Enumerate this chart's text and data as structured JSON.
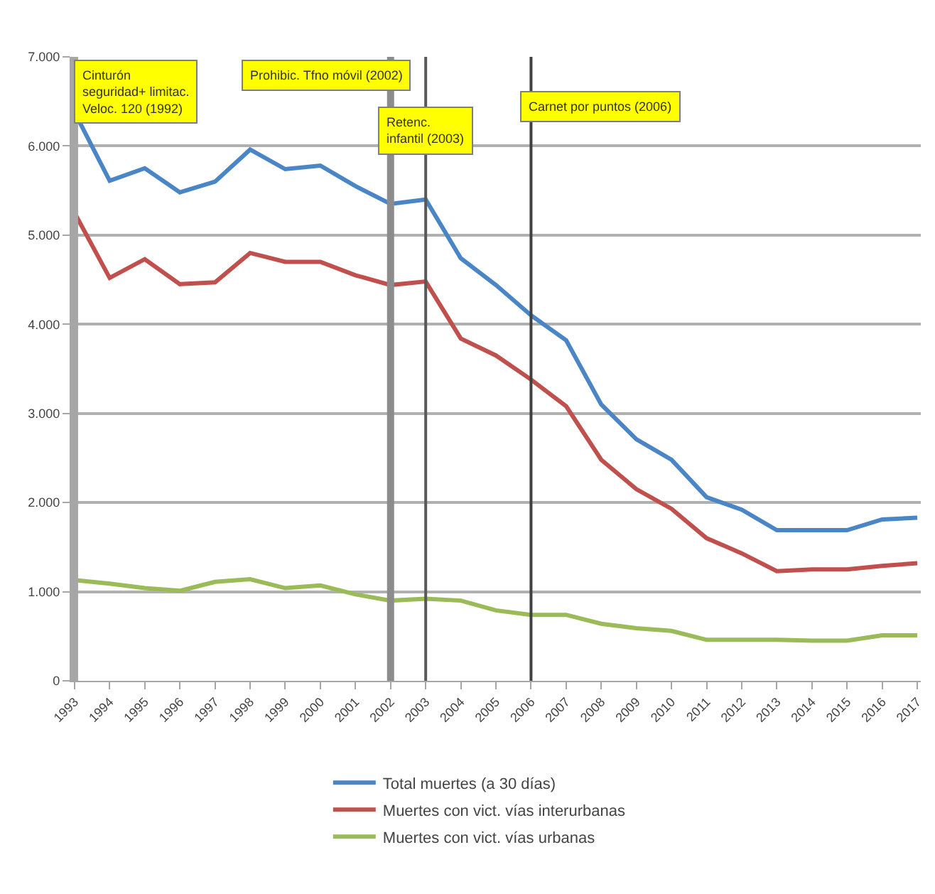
{
  "chart_data": {
    "type": "line",
    "categories": [
      "1993",
      "1994",
      "1995",
      "1996",
      "1997",
      "1998",
      "1999",
      "2000",
      "2001",
      "2002",
      "2003",
      "2004",
      "2005",
      "2006",
      "2007",
      "2008",
      "2009",
      "2010",
      "2011",
      "2012",
      "2013",
      "2014",
      "2015",
      "2016",
      "2017"
    ],
    "series": [
      {
        "name": "Total muertes (a 30 días)",
        "color": "#4a86c6",
        "values": [
          6380,
          5610,
          5750,
          5480,
          5600,
          5960,
          5740,
          5780,
          5550,
          5350,
          5400,
          4740,
          4440,
          4100,
          3820,
          3100,
          2710,
          2480,
          2060,
          1920,
          1690,
          1690,
          1690,
          1810,
          1830
        ]
      },
      {
        "name": "Muertes con vict. vías interurbanas",
        "color": "#c0504d",
        "values": [
          5250,
          4520,
          4730,
          4450,
          4470,
          4800,
          4700,
          4700,
          4550,
          4440,
          4480,
          3840,
          3650,
          3380,
          3080,
          2480,
          2150,
          1930,
          1600,
          1430,
          1230,
          1250,
          1250,
          1290,
          1320
        ]
      },
      {
        "name": "Muertes con vict. vías urbanas",
        "color": "#9bbb59",
        "values": [
          1130,
          1090,
          1040,
          1010,
          1110,
          1140,
          1040,
          1070,
          970,
          900,
          920,
          900,
          790,
          740,
          740,
          640,
          590,
          560,
          460,
          460,
          460,
          450,
          450,
          510,
          510
        ]
      }
    ],
    "ylim": [
      0,
      7000
    ],
    "yticks": [
      {
        "value": 0,
        "label": "0"
      },
      {
        "value": 1000,
        "label": "1.000"
      },
      {
        "value": 2000,
        "label": "2.000"
      },
      {
        "value": 3000,
        "label": "3.000"
      },
      {
        "value": 4000,
        "label": "4.000"
      },
      {
        "value": 5000,
        "label": "5.000"
      },
      {
        "value": 6000,
        "label": "6.000"
      },
      {
        "value": 7000,
        "label": "7.000"
      }
    ],
    "ref_lines": [
      {
        "axis": "x",
        "value": "1993",
        "label": "Cinturón\nseguridad+ limitac.\nVeloc. 120 (1992)",
        "color": "#a6a6a6"
      },
      {
        "axis": "x",
        "value": "2002",
        "label": "Prohibic. Tfno móvil (2002)",
        "color": "#8c8c8c"
      },
      {
        "axis": "x",
        "value": "2003",
        "label": "Retenc.\ninfantil (2003)",
        "color": "#595959"
      },
      {
        "axis": "x",
        "value": "2006",
        "label": "Carnet por puntos (2006)",
        "color": "#404040"
      }
    ],
    "grid": "y",
    "legend": "bottom",
    "marker": "none",
    "line_style": "solid"
  }
}
